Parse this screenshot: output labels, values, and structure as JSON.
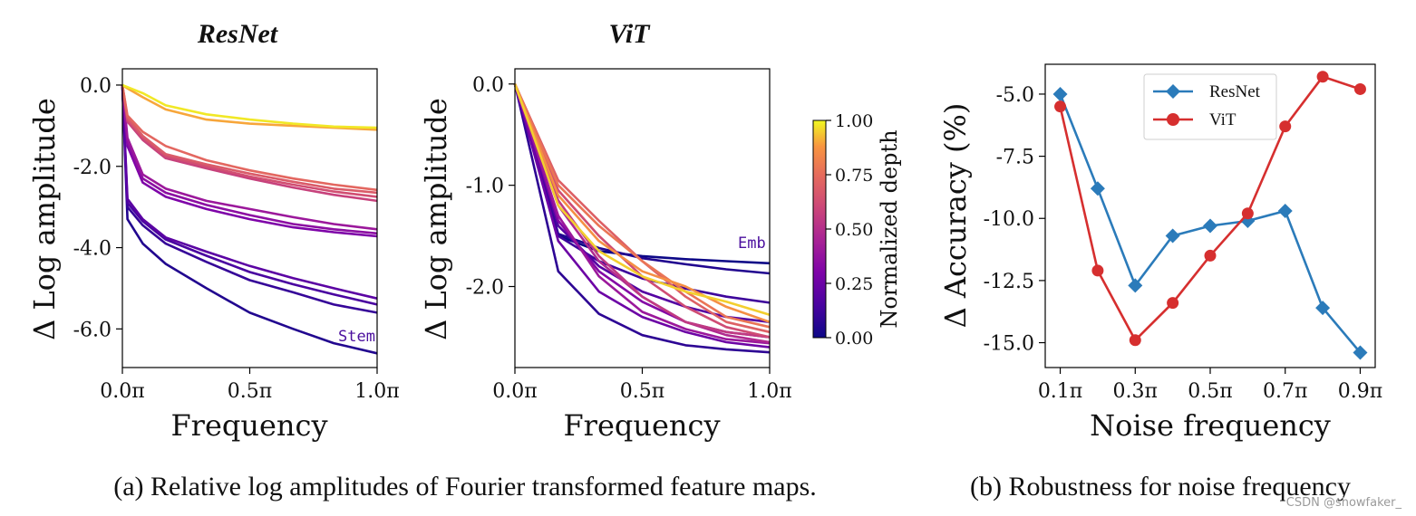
{
  "chart_data": [
    {
      "type": "line",
      "title": "ResNet",
      "xlabel": "Frequency",
      "ylabel": "Δ Log amplitude",
      "xlim": [
        0,
        1
      ],
      "ylim": [
        -6.95,
        0.4
      ],
      "xticks": [
        0,
        0.5,
        1
      ],
      "xtick_labels": [
        "0.0π",
        "0.5π",
        "1.0π"
      ],
      "yticks": [
        0,
        -2,
        -4,
        -6
      ],
      "ytick_labels": [
        "0.0",
        "-2.0",
        "-4.0",
        "-6.0"
      ],
      "x": [
        0,
        0.02,
        0.08,
        0.17,
        0.33,
        0.5,
        0.67,
        0.83,
        1.0
      ],
      "series": [
        {
          "depth": 0.05,
          "values": [
            0,
            -3.3,
            -3.9,
            -4.4,
            -5.0,
            -5.6,
            -6.0,
            -6.35,
            -6.6
          ]
        },
        {
          "depth": 0.1,
          "values": [
            0,
            -3.0,
            -3.45,
            -3.9,
            -4.35,
            -4.8,
            -5.1,
            -5.4,
            -5.6
          ]
        },
        {
          "depth": 0.15,
          "values": [
            0,
            -2.9,
            -3.35,
            -3.8,
            -4.2,
            -4.6,
            -4.9,
            -5.15,
            -5.4
          ]
        },
        {
          "depth": 0.2,
          "values": [
            0,
            -2.8,
            -3.3,
            -3.75,
            -4.1,
            -4.45,
            -4.75,
            -5.0,
            -5.25
          ]
        },
        {
          "depth": 0.3,
          "values": [
            0,
            -1.5,
            -2.4,
            -2.75,
            -3.05,
            -3.3,
            -3.5,
            -3.62,
            -3.72
          ]
        },
        {
          "depth": 0.35,
          "values": [
            0,
            -1.4,
            -2.3,
            -2.65,
            -2.95,
            -3.2,
            -3.42,
            -3.55,
            -3.65
          ]
        },
        {
          "depth": 0.4,
          "values": [
            0,
            -1.3,
            -2.2,
            -2.55,
            -2.85,
            -3.05,
            -3.25,
            -3.42,
            -3.55
          ]
        },
        {
          "depth": 0.58,
          "values": [
            0,
            -0.9,
            -1.35,
            -1.8,
            -2.05,
            -2.3,
            -2.52,
            -2.7,
            -2.85
          ]
        },
        {
          "depth": 0.63,
          "values": [
            0,
            -0.85,
            -1.3,
            -1.75,
            -2.0,
            -2.25,
            -2.45,
            -2.62,
            -2.75
          ]
        },
        {
          "depth": 0.68,
          "values": [
            0,
            -0.8,
            -1.25,
            -1.7,
            -1.95,
            -2.18,
            -2.38,
            -2.55,
            -2.65
          ]
        },
        {
          "depth": 0.73,
          "values": [
            0,
            -0.75,
            -1.15,
            -1.5,
            -1.85,
            -2.1,
            -2.3,
            -2.45,
            -2.58
          ]
        },
        {
          "depth": 0.9,
          "values": [
            0,
            -0.08,
            -0.3,
            -0.6,
            -0.85,
            -0.95,
            -1.0,
            -1.05,
            -1.1
          ]
        },
        {
          "depth": 0.98,
          "values": [
            0,
            -0.05,
            -0.2,
            -0.5,
            -0.72,
            -0.85,
            -0.95,
            -1.02,
            -1.05
          ]
        }
      ],
      "annotations": [
        {
          "text": "Stem",
          "x": 0.92,
          "y": -6.3
        }
      ]
    },
    {
      "type": "line",
      "title": "ViT",
      "xlabel": "Frequency",
      "ylabel": "Δ Log amplitude",
      "xlim": [
        0,
        1
      ],
      "ylim": [
        -2.8,
        0.15
      ],
      "xticks": [
        0,
        0.5,
        1
      ],
      "xtick_labels": [
        "0.0π",
        "0.5π",
        "1.0π"
      ],
      "yticks": [
        0,
        -1,
        -2
      ],
      "ytick_labels": [
        "0.0",
        "-1.0",
        "-2.0"
      ],
      "x": [
        0,
        0.17,
        0.33,
        0.5,
        0.67,
        0.83,
        1.0
      ],
      "series": [
        {
          "depth": 0.0,
          "values": [
            0,
            -1.5,
            -1.65,
            -1.7,
            -1.73,
            -1.75,
            -1.77
          ]
        },
        {
          "depth": 0.05,
          "values": [
            0,
            -1.48,
            -1.62,
            -1.72,
            -1.78,
            -1.83,
            -1.87
          ]
        },
        {
          "depth": 0.08,
          "values": [
            0,
            -1.85,
            -2.27,
            -2.48,
            -2.58,
            -2.62,
            -2.65
          ]
        },
        {
          "depth": 0.12,
          "values": [
            0,
            -1.5,
            -1.75,
            -1.92,
            -2.02,
            -2.1,
            -2.16
          ]
        },
        {
          "depth": 0.18,
          "values": [
            0,
            -1.4,
            -1.8,
            -2.05,
            -2.2,
            -2.3,
            -2.35
          ]
        },
        {
          "depth": 0.25,
          "values": [
            0,
            -1.55,
            -2.05,
            -2.3,
            -2.45,
            -2.55,
            -2.6
          ]
        },
        {
          "depth": 0.32,
          "values": [
            0,
            -1.35,
            -1.85,
            -2.15,
            -2.35,
            -2.45,
            -2.5
          ]
        },
        {
          "depth": 0.4,
          "values": [
            0,
            -1.3,
            -1.9,
            -2.25,
            -2.42,
            -2.52,
            -2.56
          ]
        },
        {
          "depth": 0.48,
          "values": [
            0,
            -1.2,
            -1.75,
            -2.1,
            -2.35,
            -2.48,
            -2.55
          ]
        },
        {
          "depth": 0.55,
          "values": [
            0,
            -1.15,
            -1.7,
            -2.1,
            -2.35,
            -2.45,
            -2.5
          ]
        },
        {
          "depth": 0.62,
          "values": [
            0,
            -1.05,
            -1.5,
            -1.9,
            -2.2,
            -2.4,
            -2.5
          ]
        },
        {
          "depth": 0.7,
          "values": [
            0,
            -0.95,
            -1.35,
            -1.75,
            -2.1,
            -2.35,
            -2.45
          ]
        },
        {
          "depth": 0.78,
          "values": [
            0,
            -1.0,
            -1.4,
            -1.75,
            -2.05,
            -2.3,
            -2.4
          ]
        },
        {
          "depth": 0.86,
          "values": [
            0,
            -1.1,
            -1.55,
            -1.85,
            -2.0,
            -2.2,
            -2.35
          ]
        },
        {
          "depth": 0.95,
          "values": [
            0,
            -1.2,
            -1.65,
            -1.9,
            -2.05,
            -2.15,
            -2.28
          ]
        }
      ],
      "annotations": [
        {
          "text": "Emb",
          "x": 0.93,
          "y": -1.62
        }
      ]
    },
    {
      "type": "line",
      "title": "",
      "xlabel": "Noise frequency",
      "ylabel": "Δ Accuracy (%)",
      "xlim": [
        0.06,
        0.94
      ],
      "ylim": [
        -16.0,
        -3.8
      ],
      "x": [
        0.1,
        0.2,
        0.3,
        0.4,
        0.5,
        0.6,
        0.7,
        0.8,
        0.9
      ],
      "xticks": [
        0.1,
        0.3,
        0.5,
        0.7,
        0.9
      ],
      "xtick_labels": [
        "0.1π",
        "0.3π",
        "0.5π",
        "0.7π",
        "0.9π"
      ],
      "yticks": [
        -5.0,
        -7.5,
        -10.0,
        -12.5,
        -15.0
      ],
      "ytick_labels": [
        "-5.0",
        "-7.5",
        "-10.0",
        "-12.5",
        "-15.0"
      ],
      "legend_position": "top-center",
      "series": [
        {
          "name": "ResNet",
          "color": "#2b7bba",
          "marker": "diamond",
          "values": [
            -5.0,
            -8.8,
            -12.7,
            -10.7,
            -10.3,
            -10.1,
            -9.7,
            -13.6,
            -15.4
          ]
        },
        {
          "name": "ViT",
          "color": "#d62f2f",
          "marker": "circle",
          "values": [
            -5.5,
            -12.1,
            -14.9,
            -13.4,
            -11.5,
            -9.8,
            -6.3,
            -4.3,
            -4.8
          ]
        }
      ]
    }
  ],
  "colorbar": {
    "title": "Normalized depth",
    "tick_labels": [
      "1.00",
      "0.75",
      "0.50",
      "0.25",
      "0.00"
    ]
  },
  "captions": {
    "a": "(a) Relative log amplitudes of Fourier transformed feature maps.",
    "b": "(b) Robustness for noise frequency"
  },
  "watermark": "CSDN @showfaker_"
}
